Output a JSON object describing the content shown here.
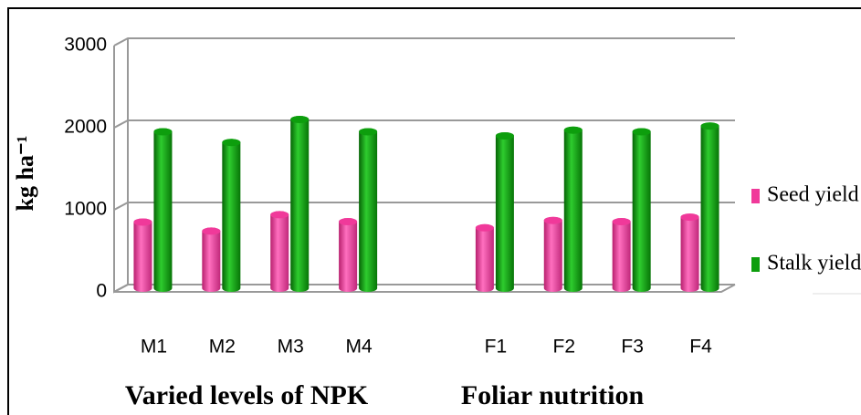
{
  "chart_data": {
    "type": "bar3d",
    "ylabel": "kg ha⁻¹",
    "categories": [
      "M1",
      "M2",
      "M3",
      "M4",
      null,
      "F1",
      "F2",
      "F3",
      "F4"
    ],
    "group_labels": [
      "Varied levels of  NPK",
      "Foliar nutrition"
    ],
    "series": [
      {
        "name": "Seed yield",
        "color": "#f0399a",
        "values": [
          850,
          740,
          940,
          855,
          null,
          780,
          870,
          855,
          910
        ]
      },
      {
        "name": "Stalk yield",
        "color": "#0d9e0d",
        "values": [
          1950,
          1820,
          2100,
          1950,
          null,
          1900,
          1970,
          1950,
          2020
        ]
      }
    ],
    "ylim": [
      0,
      3000
    ],
    "yticks": [
      0,
      1000,
      2000,
      3000
    ],
    "grid": true,
    "legend": "right"
  }
}
